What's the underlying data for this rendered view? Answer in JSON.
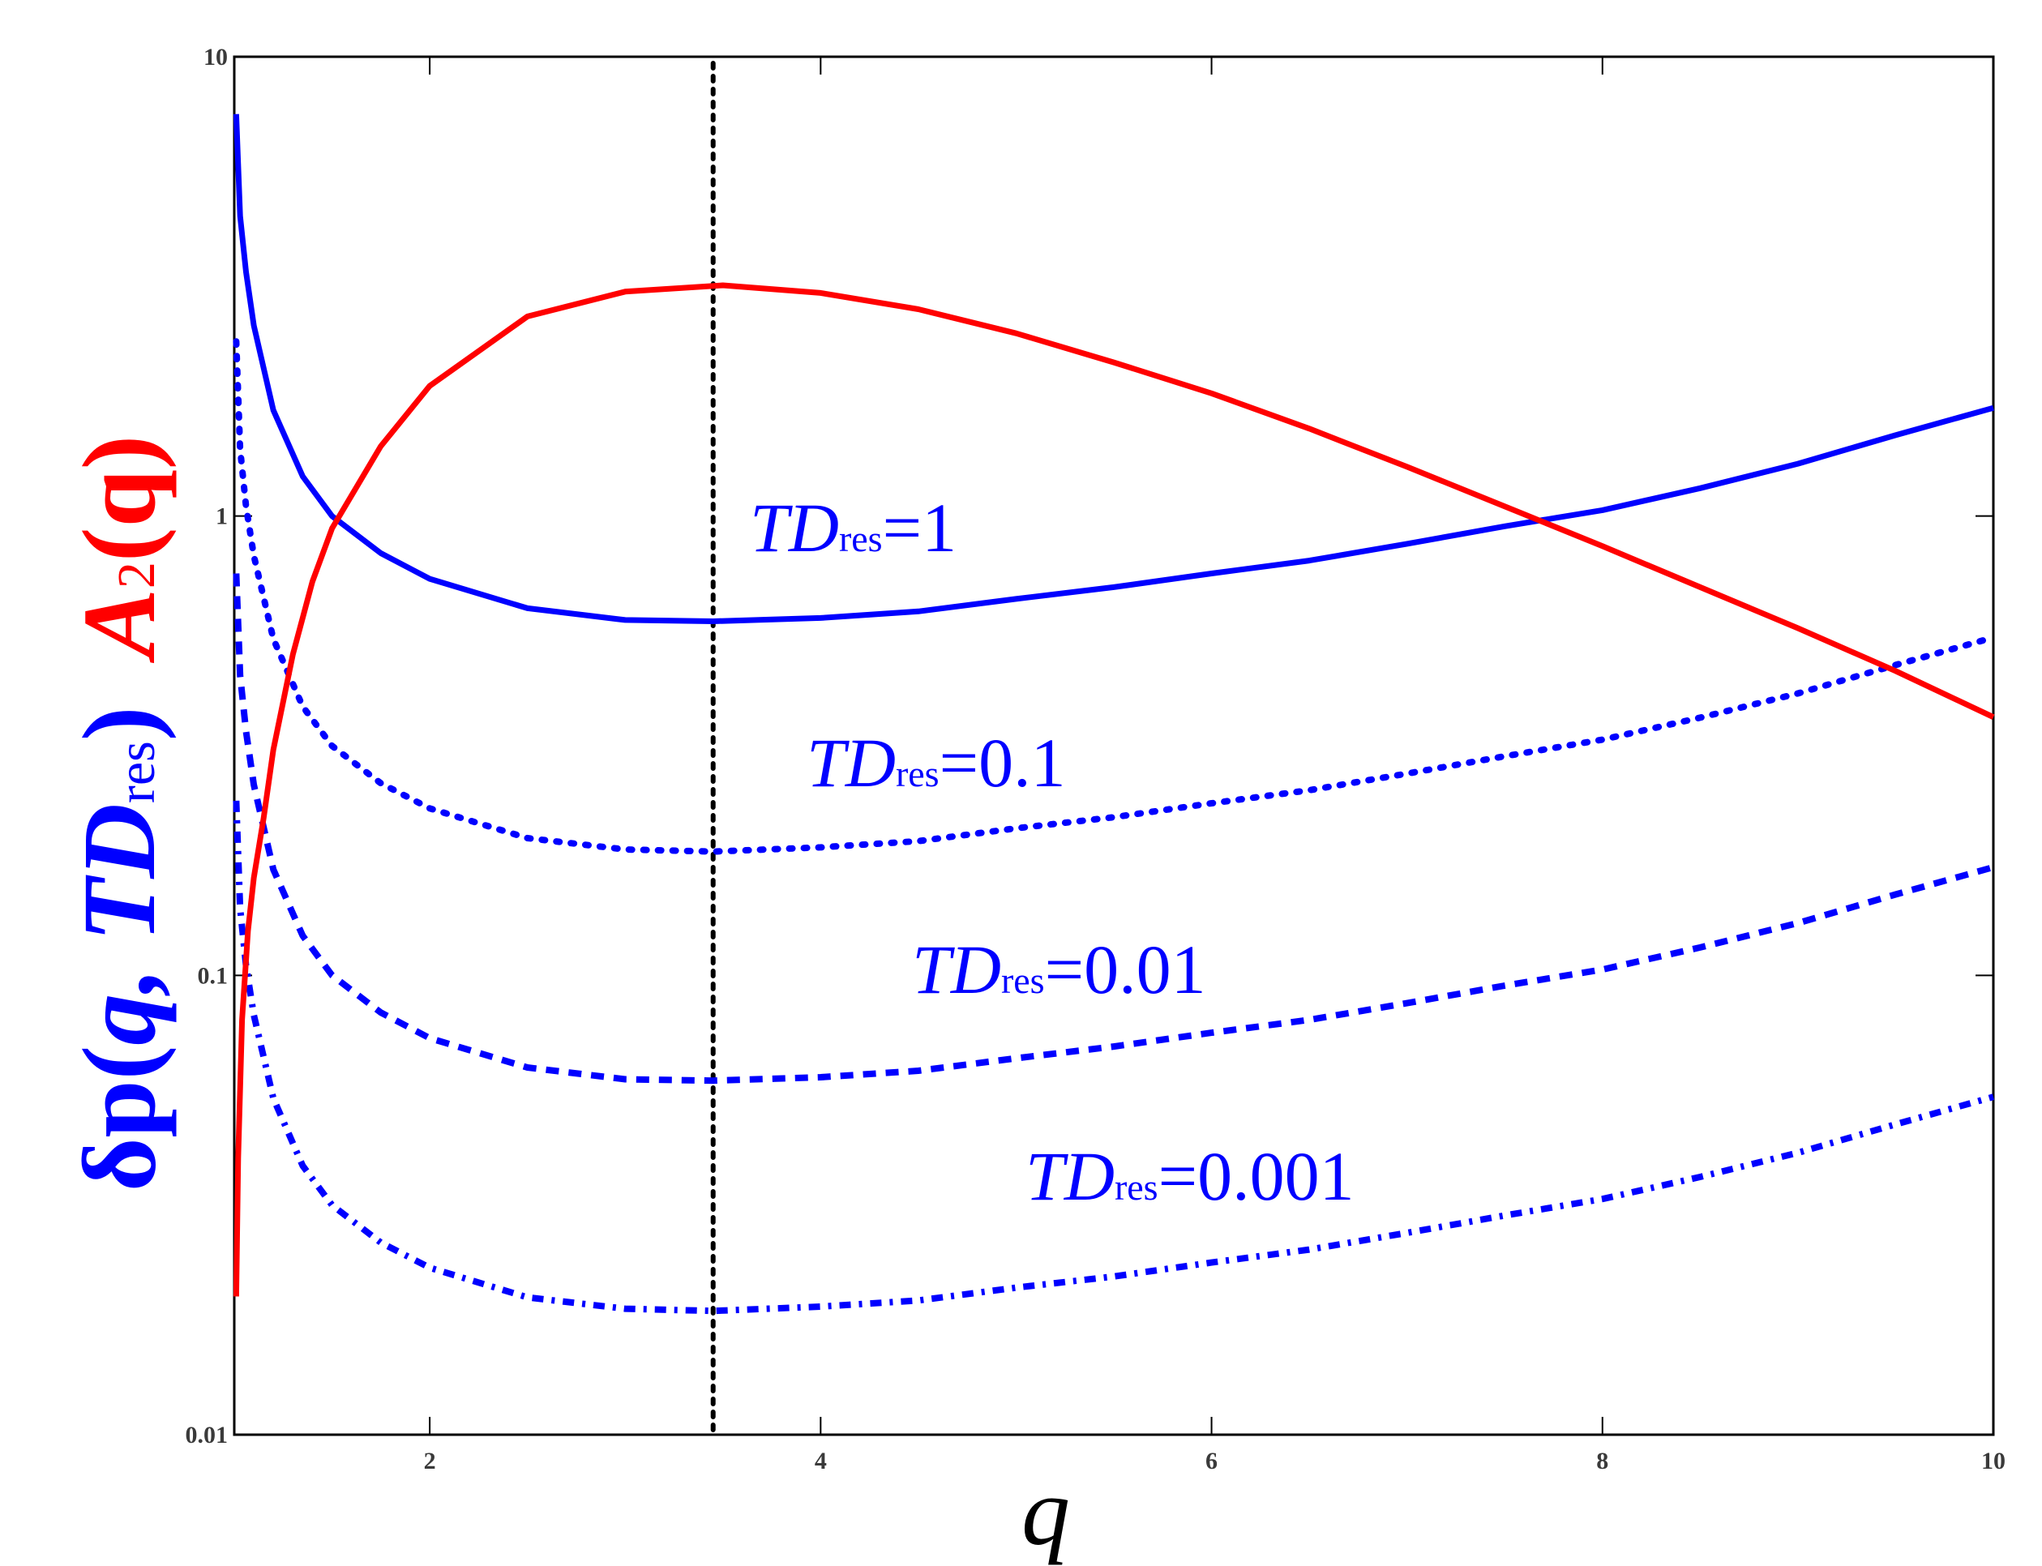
{
  "chart_data": {
    "type": "line",
    "xlabel": "q",
    "ylabel": {
      "blue": {
        "prefix": "δp(",
        "var": "q, TD",
        "sub": "res",
        "suffix": ")"
      },
      "red": {
        "main": "A",
        "sub": "2",
        "suffix": "(q)"
      }
    },
    "xlim": [
      1,
      10
    ],
    "ylim": [
      0.01,
      10
    ],
    "yscale": "log",
    "x_ticks": [
      "2",
      "4",
      "6",
      "8",
      "10"
    ],
    "y_ticks": [
      "0.01",
      "0.1",
      "1",
      "10"
    ],
    "grid": false,
    "vertical_marker_x": 3.45,
    "colors": {
      "blue": "#0000ff",
      "red": "#ff0000",
      "marker": "#000000"
    },
    "series": [
      {
        "name": "TDres=1",
        "label_main": "TD",
        "label_sub": "res",
        "label_value": "=1",
        "color": "#0000ff",
        "style": "solid",
        "x": [
          1.01,
          1.03,
          1.06,
          1.1,
          1.2,
          1.35,
          1.5,
          1.75,
          2,
          2.5,
          3,
          3.45,
          4,
          4.5,
          5,
          5.5,
          6,
          6.5,
          7,
          7.5,
          8,
          8.5,
          9,
          9.5,
          10
        ],
        "y": [
          7.5,
          4.5,
          3.4,
          2.6,
          1.7,
          1.22,
          1.0,
          0.83,
          0.73,
          0.63,
          0.594,
          0.59,
          0.6,
          0.62,
          0.66,
          0.7,
          0.75,
          0.8,
          0.87,
          0.95,
          1.03,
          1.15,
          1.3,
          1.5,
          1.72
        ]
      },
      {
        "name": "TDres=0.1",
        "label_main": "TD",
        "label_sub": "res",
        "label_value": "=0.1",
        "color": "#0000ff",
        "style": "dotted",
        "x": [
          1.01,
          1.03,
          1.06,
          1.1,
          1.2,
          1.35,
          1.5,
          1.75,
          2,
          2.5,
          3,
          3.45,
          4,
          4.5,
          5,
          5.5,
          6,
          6.5,
          7,
          7.5,
          8,
          8.5,
          9,
          9.5,
          10
        ],
        "y": [
          2.4,
          1.4,
          1.05,
          0.82,
          0.54,
          0.385,
          0.316,
          0.262,
          0.231,
          0.199,
          0.188,
          0.186,
          0.19,
          0.196,
          0.209,
          0.221,
          0.237,
          0.253,
          0.275,
          0.3,
          0.326,
          0.364,
          0.411,
          0.474,
          0.544
        ]
      },
      {
        "name": "TDres=0.01",
        "label_main": "TD",
        "label_sub": "res",
        "label_value": "=0.01",
        "color": "#0000ff",
        "style": "dashed",
        "x": [
          1.01,
          1.03,
          1.06,
          1.1,
          1.2,
          1.35,
          1.5,
          1.75,
          2,
          2.5,
          3,
          3.45,
          4,
          4.5,
          5,
          5.5,
          6,
          6.5,
          7,
          7.5,
          8,
          8.5,
          9,
          9.5,
          10
        ],
        "y": [
          0.75,
          0.45,
          0.34,
          0.26,
          0.17,
          0.122,
          0.1,
          0.083,
          0.073,
          0.063,
          0.0594,
          0.059,
          0.06,
          0.062,
          0.066,
          0.07,
          0.075,
          0.08,
          0.087,
          0.095,
          0.103,
          0.115,
          0.13,
          0.15,
          0.172
        ]
      },
      {
        "name": "TDres=0.001",
        "label_main": "TD",
        "label_sub": "res",
        "label_value": "=0.001",
        "color": "#0000ff",
        "style": "dashdot",
        "x": [
          1.01,
          1.03,
          1.06,
          1.1,
          1.2,
          1.35,
          1.5,
          1.75,
          2,
          2.5,
          3,
          3.45,
          4,
          4.5,
          5,
          5.5,
          6,
          6.5,
          7,
          7.5,
          8,
          8.5,
          9,
          9.5,
          10
        ],
        "y": [
          0.24,
          0.14,
          0.105,
          0.082,
          0.054,
          0.0385,
          0.0316,
          0.0262,
          0.0231,
          0.0199,
          0.0188,
          0.0186,
          0.019,
          0.0196,
          0.0209,
          0.0221,
          0.0237,
          0.0253,
          0.0275,
          0.03,
          0.0326,
          0.0364,
          0.0411,
          0.0474,
          0.0544
        ]
      },
      {
        "name": "A2(q)",
        "color": "#ff0000",
        "style": "solid",
        "x": [
          1.01,
          1.02,
          1.04,
          1.07,
          1.1,
          1.15,
          1.2,
          1.3,
          1.4,
          1.5,
          1.75,
          2,
          2.5,
          3,
          3.5,
          4,
          4.5,
          5,
          5.5,
          6,
          6.5,
          7,
          7.5,
          8,
          8.5,
          9,
          9.5,
          10
        ],
        "y": [
          0.02,
          0.04,
          0.08,
          0.125,
          0.163,
          0.22,
          0.31,
          0.5,
          0.72,
          0.94,
          1.42,
          1.92,
          2.72,
          3.08,
          3.18,
          3.06,
          2.82,
          2.5,
          2.16,
          1.85,
          1.55,
          1.28,
          1.05,
          0.86,
          0.7,
          0.57,
          0.46,
          0.365
        ]
      }
    ]
  }
}
